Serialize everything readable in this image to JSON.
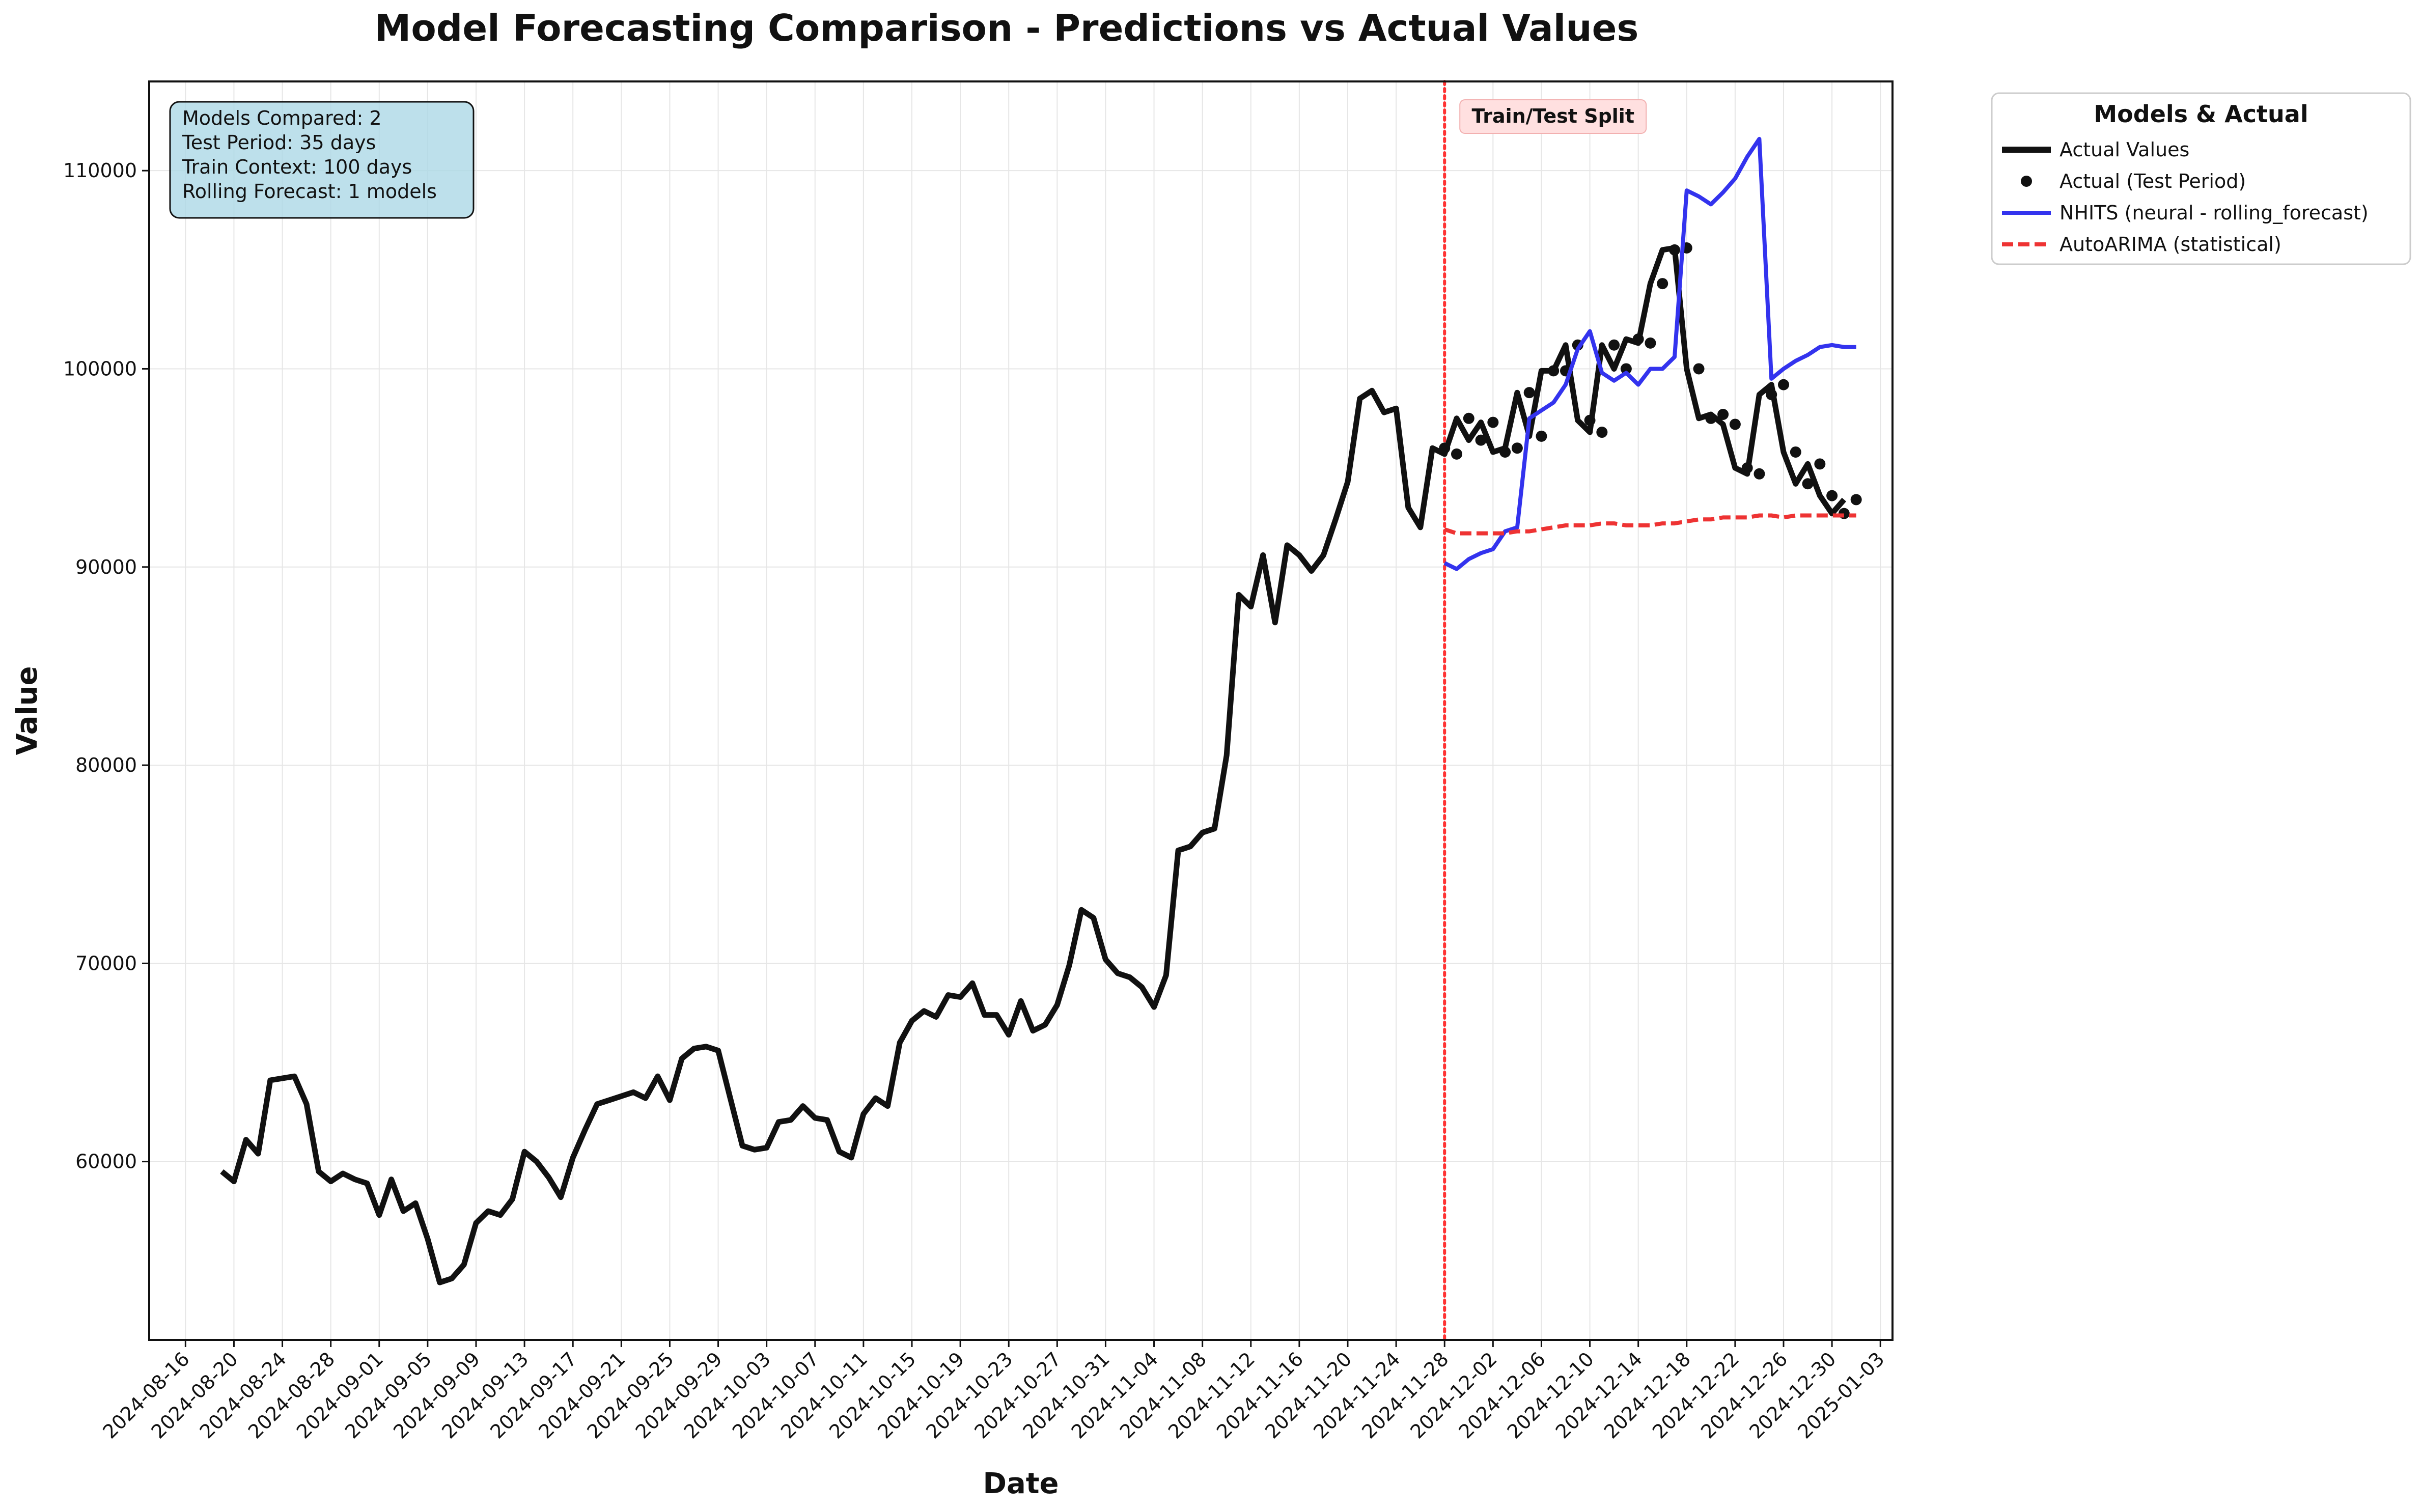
{
  "chart_data": {
    "type": "line",
    "title": "Model Forecasting Comparison - Predictions vs Actual Values",
    "xlabel": "Date",
    "ylabel": "Value",
    "x_range": [
      "2024-08-13",
      "2025-01-04"
    ],
    "ylim": [
      51000,
      114500
    ],
    "grid": true,
    "x_ticks": [
      "2024-08-16",
      "2024-08-20",
      "2024-08-24",
      "2024-08-28",
      "2024-09-01",
      "2024-09-05",
      "2024-09-09",
      "2024-09-13",
      "2024-09-17",
      "2024-09-21",
      "2024-09-25",
      "2024-09-29",
      "2024-10-03",
      "2024-10-07",
      "2024-10-11",
      "2024-10-15",
      "2024-10-19",
      "2024-10-23",
      "2024-10-27",
      "2024-10-31",
      "2024-11-04",
      "2024-11-08",
      "2024-11-12",
      "2024-11-16",
      "2024-11-20",
      "2024-11-24",
      "2024-11-28",
      "2024-12-02",
      "2024-12-06",
      "2024-12-10",
      "2024-12-14",
      "2024-12-18",
      "2024-12-22",
      "2024-12-26",
      "2024-12-30",
      "2025-01-03"
    ],
    "y_ticks": [
      60000,
      70000,
      80000,
      90000,
      100000,
      110000
    ],
    "split": {
      "date": "2024-11-28",
      "label": "Train/Test Split",
      "color": "#ff3333"
    },
    "info_box": {
      "lines": [
        "Models Compared: 2",
        "Test Period: 35 days",
        "Train Context: 100 days",
        "Rolling Forecast: 1 models"
      ],
      "bg": "#add8e6"
    },
    "legend": {
      "title": "Models & Actual",
      "position": "outside-right-top",
      "entries": [
        "Actual Values",
        "Actual (Test Period)",
        "NHITS (neural - rolling_forecast)",
        "AutoARIMA (statistical)"
      ]
    },
    "series": [
      {
        "name": "Actual Values",
        "color": "#111111",
        "style": "solid",
        "start": "2024-08-19",
        "values": [
          59500,
          59000,
          61100,
          60400,
          64100,
          64200,
          64300,
          62900,
          59500,
          59000,
          59400,
          59100,
          58900,
          57300,
          59100,
          57500,
          57900,
          56100,
          53900,
          54100,
          54800,
          56900,
          57500,
          57300,
          58100,
          60500,
          60000,
          59200,
          58200,
          60200,
          61600,
          62900,
          63100,
          63300,
          63500,
          63200,
          64300,
          63100,
          65200,
          65700,
          65800,
          65600,
          63200,
          60800,
          60600,
          60700,
          62000,
          62100,
          62800,
          62200,
          62100,
          60500,
          60200,
          62400,
          63200,
          62800,
          66000,
          67100,
          67600,
          67300,
          68400,
          68300,
          69000,
          67400,
          67400,
          66400,
          68100,
          66600,
          66900,
          67900,
          69900,
          72700,
          72300,
          70200,
          69500,
          69300,
          68800,
          67800,
          69400,
          75700,
          75900,
          76600,
          76800,
          80500,
          88600,
          88000,
          90600,
          87200,
          91100,
          90600,
          89800,
          90600,
          92400,
          94300,
          98500,
          98900,
          97800,
          98000,
          93000,
          92000,
          96000,
          95700,
          97500,
          96400,
          97300,
          95800,
          96000,
          98800,
          96600,
          99900,
          99900,
          101200,
          97400,
          96800,
          101200,
          100000,
          101500,
          101300,
          104300,
          106000,
          106100,
          100000,
          97500,
          97700,
          97200,
          95000,
          94700,
          98700,
          99200,
          95800,
          94200,
          95200,
          93600,
          92700,
          93400
        ]
      },
      {
        "name": "Actual (Test Period)",
        "color": "#111111",
        "style": "markers",
        "start": "2024-11-28",
        "values": [
          96000,
          95700,
          97500,
          96400,
          97300,
          95800,
          96000,
          98800,
          96600,
          99900,
          99900,
          101200,
          97400,
          96800,
          101200,
          100000,
          101500,
          101300,
          104300,
          106000,
          106100,
          100000,
          97500,
          97700,
          97200,
          95000,
          94700,
          98700,
          99200,
          95800,
          94200,
          95200,
          93600,
          92700,
          93400
        ]
      },
      {
        "name": "NHITS (neural - rolling_forecast)",
        "color": "#3333ee",
        "style": "solid",
        "start": "2024-11-28",
        "values": [
          90200,
          89900,
          90400,
          90700,
          90900,
          91800,
          92000,
          97500,
          97900,
          98300,
          99200,
          101000,
          101900,
          99800,
          99400,
          99800,
          99200,
          100000,
          100000,
          100600,
          109000,
          108700,
          108300,
          108900,
          109600,
          110700,
          111600,
          99500,
          100000,
          100400,
          100700,
          101100,
          101200,
          101100,
          101100
        ]
      },
      {
        "name": "AutoARIMA (statistical)",
        "color": "#ee3333",
        "style": "dashed",
        "start": "2024-11-28",
        "values": [
          91900,
          91700,
          91700,
          91700,
          91700,
          91700,
          91800,
          91800,
          91900,
          92000,
          92100,
          92100,
          92100,
          92200,
          92200,
          92100,
          92100,
          92100,
          92200,
          92200,
          92300,
          92400,
          92400,
          92500,
          92500,
          92500,
          92600,
          92600,
          92500,
          92600,
          92600,
          92600,
          92600,
          92600,
          92600
        ]
      }
    ]
  }
}
